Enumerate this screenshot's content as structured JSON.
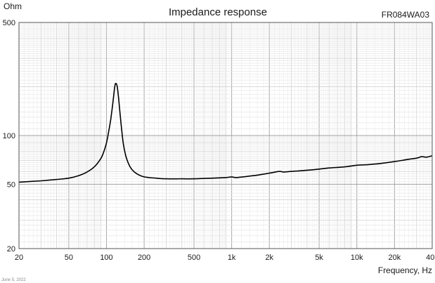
{
  "chart_data": {
    "type": "line",
    "title": "Impedance response",
    "model": "FR084WA03",
    "ylabel": "Ohm",
    "xlabel": "Frequency, Hz",
    "date": "June 5, 2022",
    "x_scale": "log",
    "y_scale": "log",
    "xlim": [
      20,
      40000
    ],
    "ylim": [
      20,
      500
    ],
    "grid": true,
    "x_ticks": [
      20,
      50,
      100,
      200,
      500,
      1000,
      2000,
      5000,
      10000,
      20000,
      40000
    ],
    "x_tick_labels": [
      "20",
      "50",
      "100",
      "200",
      "500",
      "1k",
      "2k",
      "5k",
      "10k",
      "20k",
      "40k"
    ],
    "y_ticks": [
      20,
      50,
      100,
      500
    ],
    "y_tick_labels": [
      "20",
      "50",
      "100",
      "500"
    ],
    "series": [
      {
        "color": "#000000",
        "x": [
          20,
          30,
          40,
          50,
          60,
          70,
          80,
          90,
          95,
          100,
          104,
          108,
          112,
          115,
          117,
          119,
          122,
          125,
          128,
          132,
          136,
          142,
          150,
          160,
          175,
          200,
          250,
          300,
          400,
          500,
          700,
          900,
          1000,
          1100,
          1500,
          2000,
          2400,
          2600,
          3000,
          4000,
          5000,
          6000,
          8000,
          10000,
          12000,
          15000,
          20000,
          25000,
          30000,
          33000,
          36000,
          40000
        ],
        "y": [
          51.5,
          52.5,
          53.5,
          54.5,
          56.5,
          59.5,
          64,
          72,
          79,
          90,
          105,
          125,
          155,
          185,
          205,
          210,
          200,
          170,
          140,
          110,
          90,
          76,
          67,
          61.5,
          58,
          55.5,
          54.5,
          54,
          54,
          54,
          54.5,
          55,
          55.5,
          55,
          56.5,
          58.5,
          60,
          59.5,
          60,
          61,
          62,
          63,
          64,
          65.5,
          66,
          67,
          69,
          71,
          72.5,
          74,
          73.5,
          75
        ]
      }
    ]
  }
}
